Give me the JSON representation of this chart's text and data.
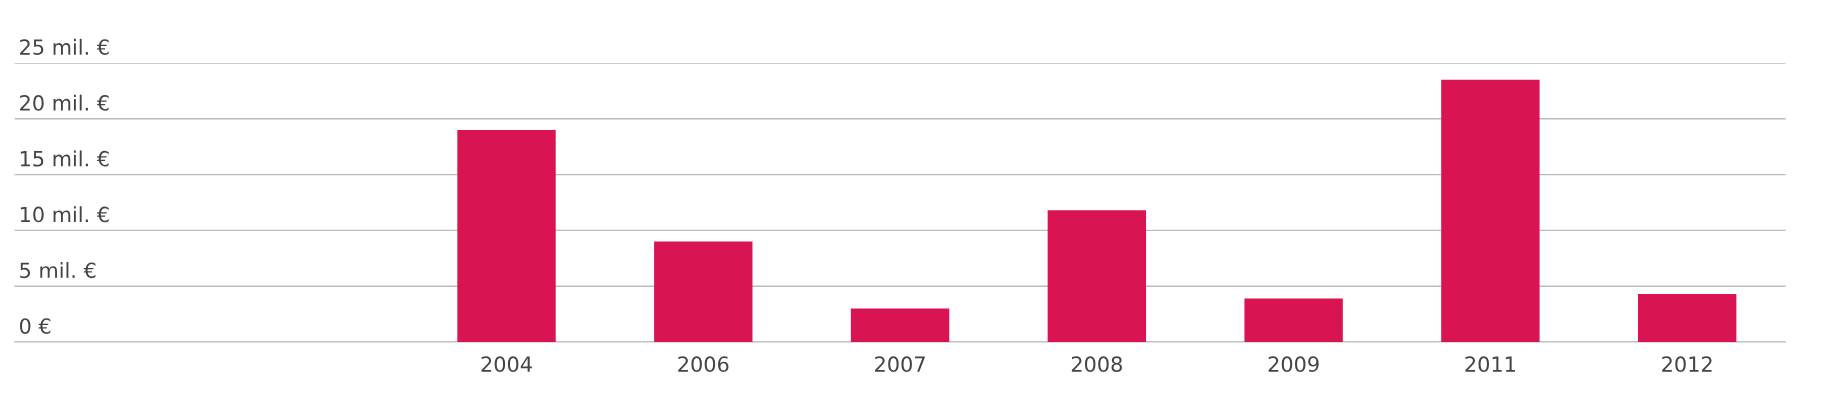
{
  "chart_data": {
    "type": "bar",
    "categories": [
      null,
      null,
      "2004",
      "2006",
      "2007",
      "2008",
      "2009",
      "2011",
      "2012"
    ],
    "values": [
      null,
      null,
      19,
      9,
      3,
      11.8,
      3.9,
      23.5,
      4.3
    ],
    "color": "#d81552",
    "ylim": [
      0,
      25
    ],
    "yticks": [
      {
        "value": 0,
        "label": "0 €"
      },
      {
        "value": 5,
        "label": "5 mil. €"
      },
      {
        "value": 10,
        "label": "10 mil. €"
      },
      {
        "value": 15,
        "label": "15 mil. €"
      },
      {
        "value": 20,
        "label": "20 mil. €"
      },
      {
        "value": 25,
        "label": "25 mil. €"
      }
    ],
    "grid": "y",
    "legend": false
  }
}
